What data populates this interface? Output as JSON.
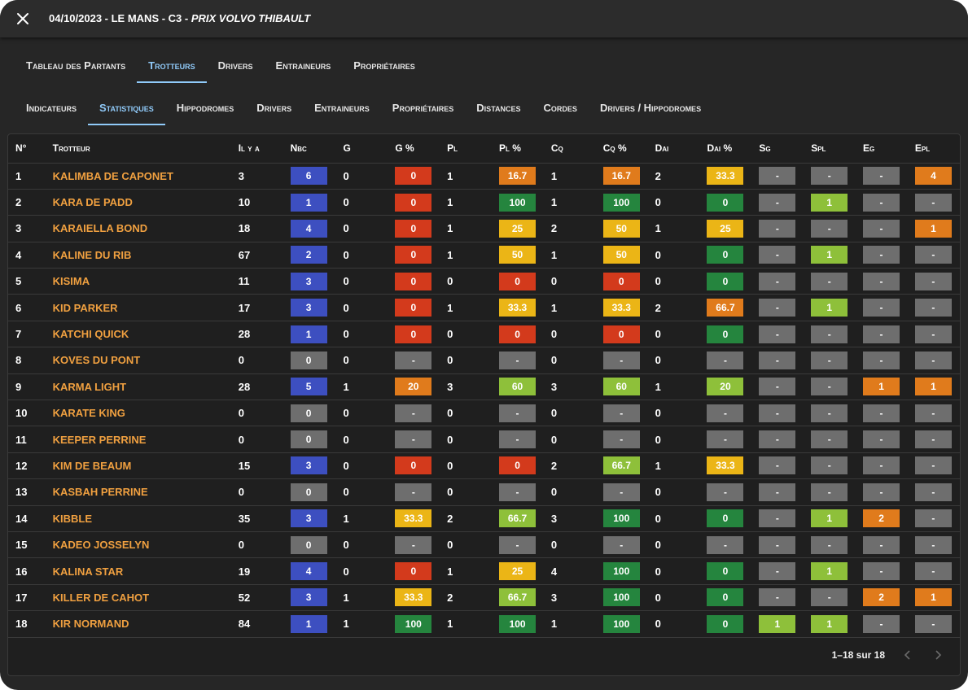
{
  "header": {
    "title_main": "04/10/2023 - LE MANS - C3 - ",
    "title_italic": "PRIX VOLVO THIBAULT"
  },
  "primary_tabs": [
    "Tableau des Partants",
    "Trotteurs",
    "Drivers",
    "Entraineurs",
    "Propriétaires"
  ],
  "primary_active": 1,
  "secondary_tabs": [
    "Indicateurs",
    "Statistiques",
    "Hippodromes",
    "Drivers",
    "Entraineurs",
    "Propriétaires",
    "Distances",
    "Cordes",
    "Drivers / Hippodromes"
  ],
  "secondary_active": 1,
  "table": {
    "headers": [
      "N°",
      "Trotteur",
      "Il y a",
      "Nbc",
      "G",
      "G %",
      "Pl",
      "Pl %",
      "Cq",
      "Cq %",
      "Dai",
      "Dai %",
      "Sg",
      "Spl",
      "Eg",
      "Epl"
    ],
    "rows": [
      [
        "1",
        "KALIMBA DE CAPONET",
        "3",
        "6",
        "0",
        "0",
        "1",
        "16.7",
        "1",
        "16.7",
        "2",
        "33.3",
        "-",
        "-",
        "-",
        "4"
      ],
      [
        "2",
        "KARA DE PADD",
        "10",
        "1",
        "0",
        "0",
        "1",
        "100",
        "1",
        "100",
        "0",
        "0",
        "-",
        "1",
        "-",
        "-"
      ],
      [
        "3",
        "KARAIELLA BOND",
        "18",
        "4",
        "0",
        "0",
        "1",
        "25",
        "2",
        "50",
        "1",
        "25",
        "-",
        "-",
        "-",
        "1"
      ],
      [
        "4",
        "KALINE DU RIB",
        "67",
        "2",
        "0",
        "0",
        "1",
        "50",
        "1",
        "50",
        "0",
        "0",
        "-",
        "1",
        "-",
        "-"
      ],
      [
        "5",
        "KISIMA",
        "11",
        "3",
        "0",
        "0",
        "0",
        "0",
        "0",
        "0",
        "0",
        "0",
        "-",
        "-",
        "-",
        "-"
      ],
      [
        "6",
        "KID PARKER",
        "17",
        "3",
        "0",
        "0",
        "1",
        "33.3",
        "1",
        "33.3",
        "2",
        "66.7",
        "-",
        "1",
        "-",
        "-"
      ],
      [
        "7",
        "KATCHI QUICK",
        "28",
        "1",
        "0",
        "0",
        "0",
        "0",
        "0",
        "0",
        "0",
        "0",
        "-",
        "-",
        "-",
        "-"
      ],
      [
        "8",
        "KOVES DU PONT",
        "0",
        "0",
        "0",
        "-",
        "0",
        "-",
        "0",
        "-",
        "0",
        "-",
        "-",
        "-",
        "-",
        "-"
      ],
      [
        "9",
        "KARMA LIGHT",
        "28",
        "5",
        "1",
        "20",
        "3",
        "60",
        "3",
        "60",
        "1",
        "20",
        "-",
        "-",
        "1",
        "1"
      ],
      [
        "10",
        "KARATE KING",
        "0",
        "0",
        "0",
        "-",
        "0",
        "-",
        "0",
        "-",
        "0",
        "-",
        "-",
        "-",
        "-",
        "-"
      ],
      [
        "11",
        "KEEPER PERRINE",
        "0",
        "0",
        "0",
        "-",
        "0",
        "-",
        "0",
        "-",
        "0",
        "-",
        "-",
        "-",
        "-",
        "-"
      ],
      [
        "12",
        "KIM DE BEAUM",
        "15",
        "3",
        "0",
        "0",
        "0",
        "0",
        "2",
        "66.7",
        "1",
        "33.3",
        "-",
        "-",
        "-",
        "-"
      ],
      [
        "13",
        "KASBAH PERRINE",
        "0",
        "0",
        "0",
        "-",
        "0",
        "-",
        "0",
        "-",
        "0",
        "-",
        "-",
        "-",
        "-",
        "-"
      ],
      [
        "14",
        "KIBBLE",
        "35",
        "3",
        "1",
        "33.3",
        "2",
        "66.7",
        "3",
        "100",
        "0",
        "0",
        "-",
        "1",
        "2",
        "-"
      ],
      [
        "15",
        "KADEO JOSSELYN",
        "0",
        "0",
        "0",
        "-",
        "0",
        "-",
        "0",
        "-",
        "0",
        "-",
        "-",
        "-",
        "-",
        "-"
      ],
      [
        "16",
        "KALINA STAR",
        "19",
        "4",
        "0",
        "0",
        "1",
        "25",
        "4",
        "100",
        "0",
        "0",
        "-",
        "1",
        "-",
        "-"
      ],
      [
        "17",
        "KILLER DE CAHOT",
        "52",
        "3",
        "1",
        "33.3",
        "2",
        "66.7",
        "3",
        "100",
        "0",
        "0",
        "-",
        "-",
        "2",
        "1"
      ],
      [
        "18",
        "KIR NORMAND",
        "84",
        "1",
        "1",
        "100",
        "1",
        "100",
        "1",
        "100",
        "0",
        "0",
        "1",
        "1",
        "-",
        "-"
      ]
    ],
    "colors": [
      [
        "blue",
        "red",
        "orange",
        "orange",
        "yellow",
        "grey",
        "grey",
        "grey",
        "orange"
      ],
      [
        "blue",
        "red",
        "green",
        "green",
        "green",
        "grey",
        "lgreen",
        "grey",
        "grey"
      ],
      [
        "blue",
        "red",
        "yellow",
        "yellow",
        "yellow",
        "grey",
        "grey",
        "grey",
        "orange"
      ],
      [
        "blue",
        "red",
        "yellow",
        "yellow",
        "green",
        "grey",
        "lgreen",
        "grey",
        "grey"
      ],
      [
        "blue",
        "red",
        "red",
        "red",
        "green",
        "grey",
        "grey",
        "grey",
        "grey"
      ],
      [
        "blue",
        "red",
        "yellow",
        "yellow",
        "orange",
        "grey",
        "lgreen",
        "grey",
        "grey"
      ],
      [
        "blue",
        "red",
        "red",
        "red",
        "green",
        "grey",
        "grey",
        "grey",
        "grey"
      ],
      [
        "grey",
        "grey",
        "grey",
        "grey",
        "grey",
        "grey",
        "grey",
        "grey",
        "grey"
      ],
      [
        "blue",
        "orange",
        "lgreen",
        "lgreen",
        "lgreen",
        "grey",
        "grey",
        "orange",
        "orange"
      ],
      [
        "grey",
        "grey",
        "grey",
        "grey",
        "grey",
        "grey",
        "grey",
        "grey",
        "grey"
      ],
      [
        "grey",
        "grey",
        "grey",
        "grey",
        "grey",
        "grey",
        "grey",
        "grey",
        "grey"
      ],
      [
        "blue",
        "red",
        "red",
        "lgreen",
        "yellow",
        "grey",
        "grey",
        "grey",
        "grey"
      ],
      [
        "grey",
        "grey",
        "grey",
        "grey",
        "grey",
        "grey",
        "grey",
        "grey",
        "grey"
      ],
      [
        "blue",
        "yellow",
        "lgreen",
        "green",
        "green",
        "grey",
        "lgreen",
        "orange",
        "grey"
      ],
      [
        "grey",
        "grey",
        "grey",
        "grey",
        "grey",
        "grey",
        "grey",
        "grey",
        "grey"
      ],
      [
        "blue",
        "red",
        "yellow",
        "green",
        "green",
        "grey",
        "lgreen",
        "grey",
        "grey"
      ],
      [
        "blue",
        "yellow",
        "lgreen",
        "green",
        "green",
        "grey",
        "grey",
        "orange",
        "orange"
      ],
      [
        "blue",
        "green",
        "green",
        "green",
        "green",
        "lgreen",
        "lgreen",
        "grey",
        "grey"
      ]
    ]
  },
  "pagination": {
    "label": "1–18 sur 18"
  },
  "palette": {
    "blue": "#3d4fc0",
    "grey": "#6e6e6e",
    "red": "#d33a1c",
    "orange": "#e07b1c",
    "yellow": "#ebb516",
    "lgreen": "#8ec03a",
    "green": "#25853e",
    "accent": "#90caf9"
  }
}
